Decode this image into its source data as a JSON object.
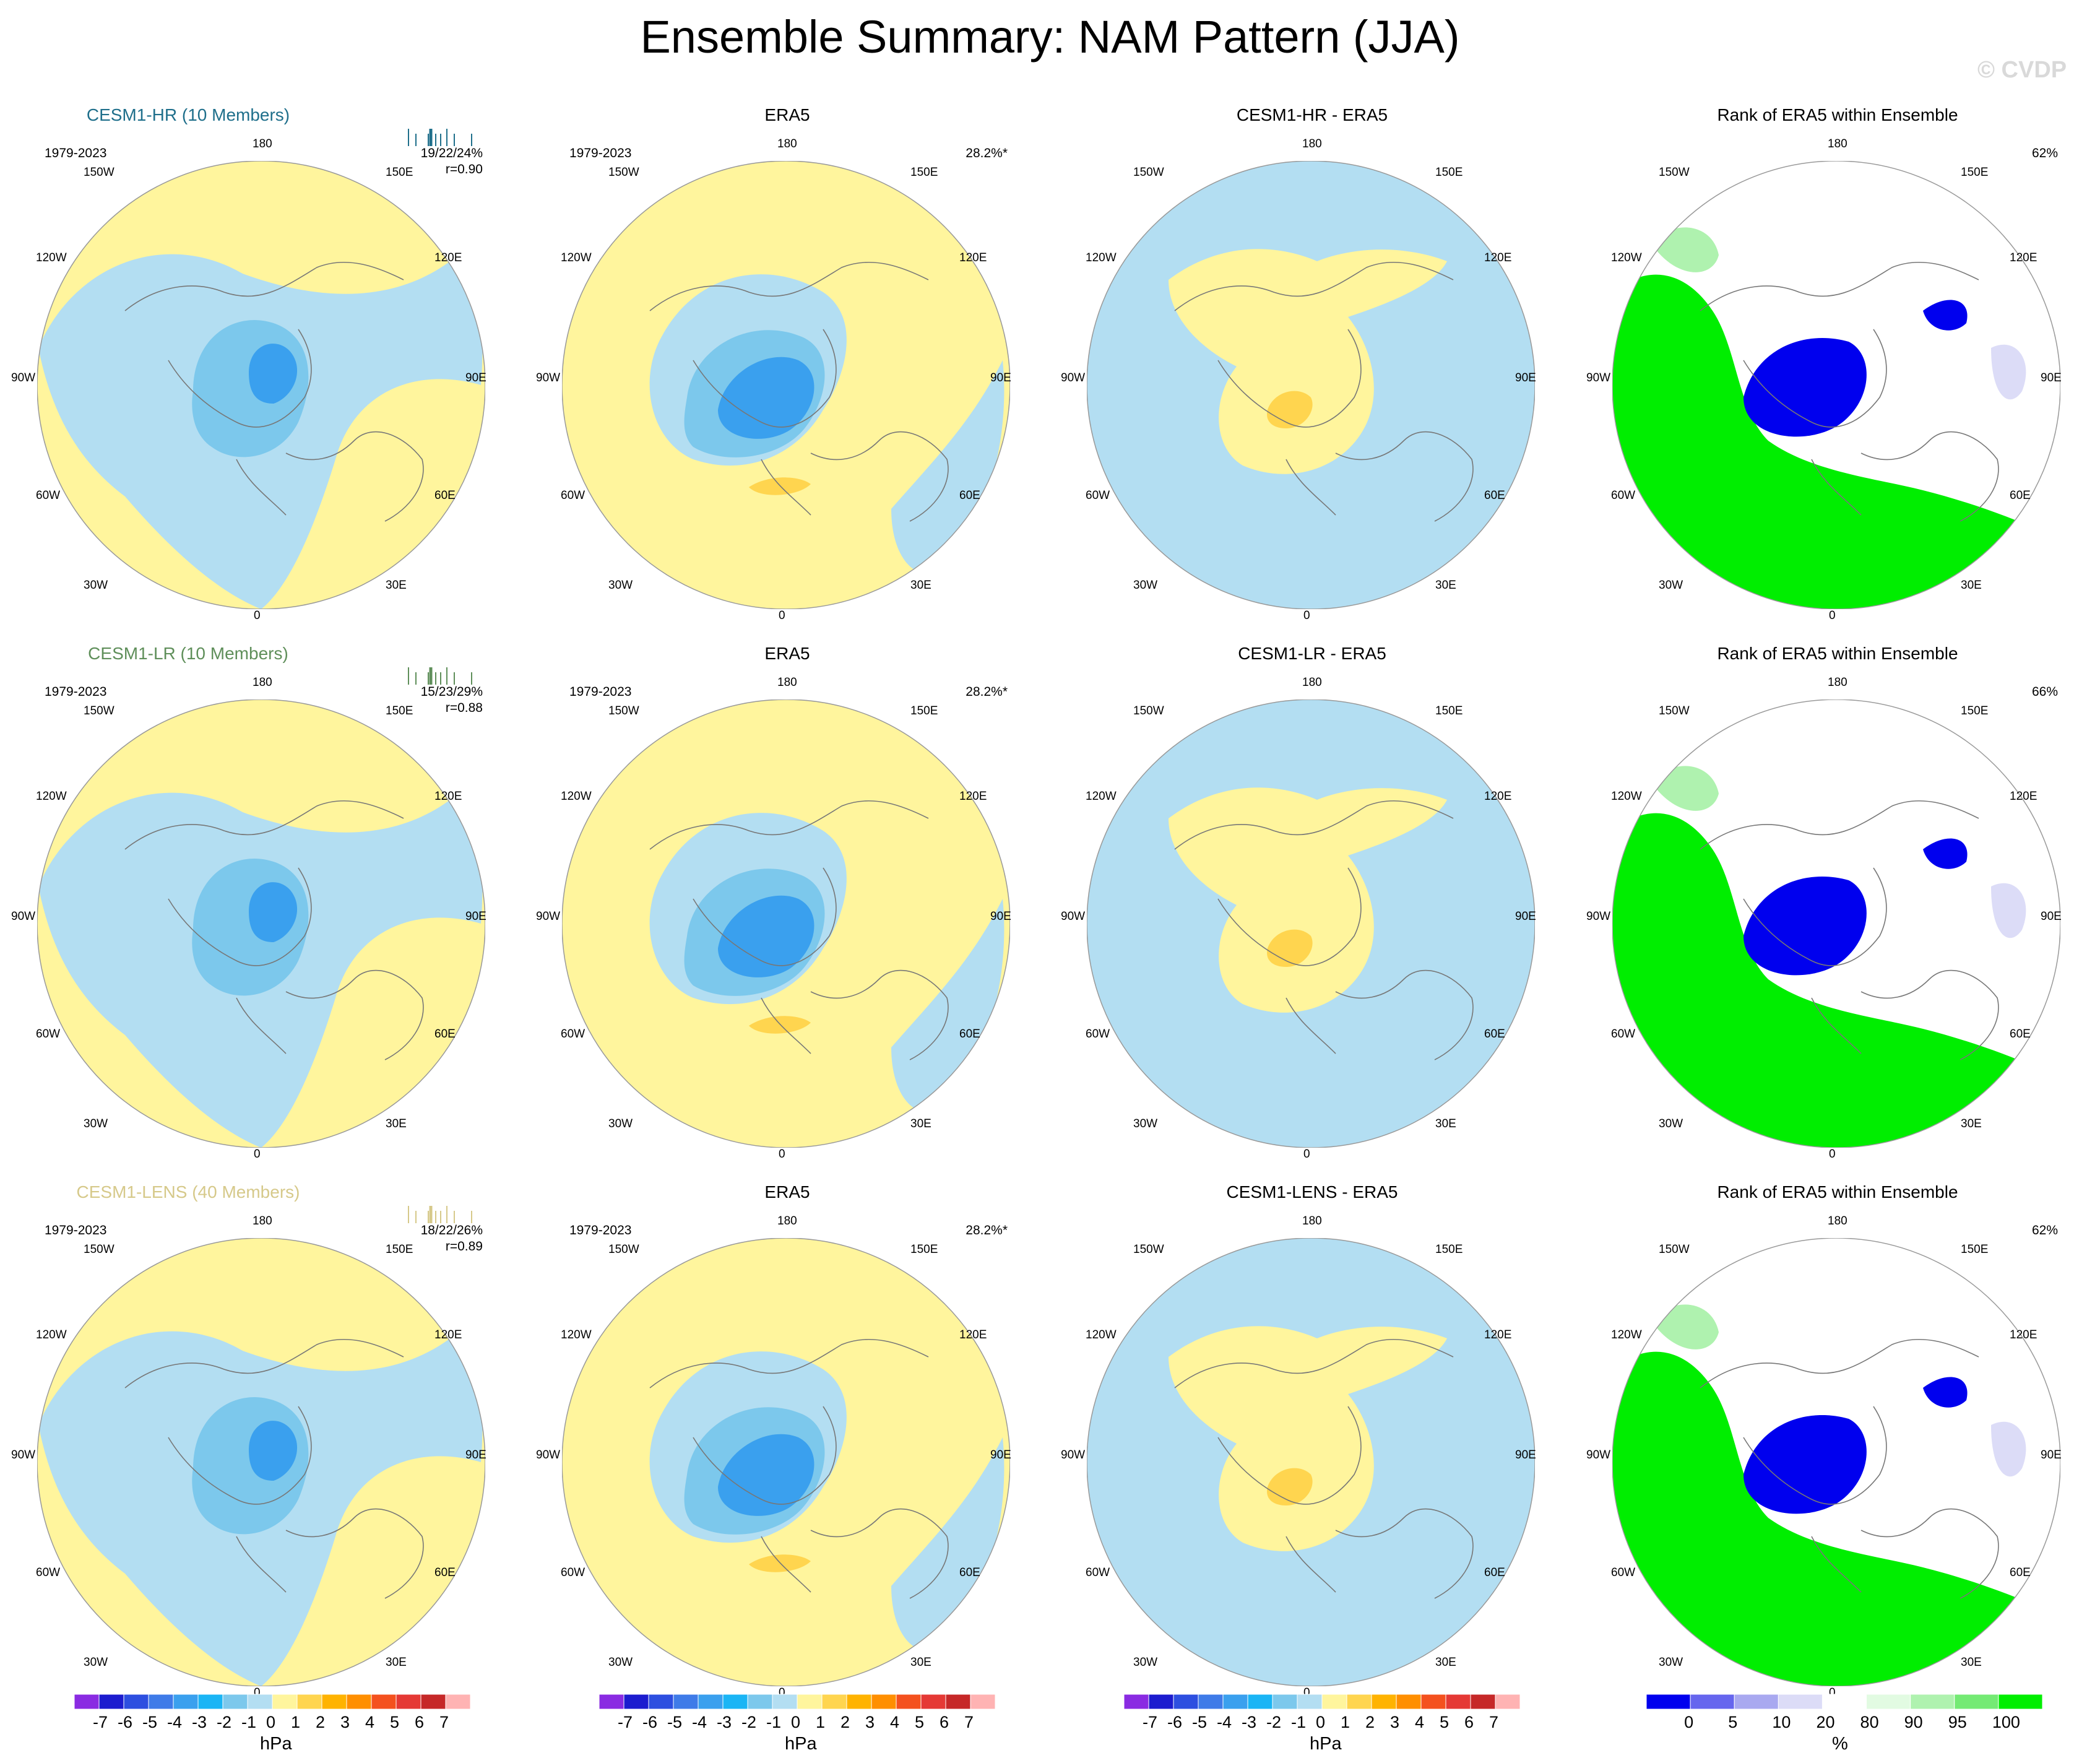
{
  "page": {
    "title": "Ensemble Summary: NAM Pattern (JJA)",
    "watermark": "© CVDP"
  },
  "lon_labels": {
    "top": "180",
    "bottom": "0",
    "l150": "150W",
    "r150": "150E",
    "l120": "120W",
    "r120": "120E",
    "l90": "90W",
    "r90": "90E",
    "l60": "60W",
    "r60": "60E",
    "l30": "30W",
    "r30": "30E"
  },
  "rows": [
    {
      "model": {
        "title": "CESM1-HR (10 Members)",
        "color": "#1f6f8b",
        "years": "1979-2023",
        "pct": "19/22/24%",
        "corr": "r=0.90"
      },
      "obs": {
        "title": "ERA5",
        "years": "1979-2023",
        "pct": "28.2%*"
      },
      "diff": {
        "title": "CESM1-HR - ERA5"
      },
      "rank": {
        "title": "Rank of ERA5 within Ensemble",
        "pct": "62%"
      }
    },
    {
      "model": {
        "title": "CESM1-LR (10 Members)",
        "color": "#5f8f5a",
        "years": "1979-2023",
        "pct": "15/23/29%",
        "corr": "r=0.88"
      },
      "obs": {
        "title": "ERA5",
        "years": "1979-2023",
        "pct": "28.2%*"
      },
      "diff": {
        "title": "CESM1-LR - ERA5"
      },
      "rank": {
        "title": "Rank of ERA5 within Ensemble",
        "pct": "66%"
      }
    },
    {
      "model": {
        "title": "CESM1-LENS (40 Members)",
        "color": "#d6c98a",
        "years": "1979-2023",
        "pct": "18/22/26%",
        "corr": "r=0.89"
      },
      "obs": {
        "title": "ERA5",
        "years": "1979-2023",
        "pct": "28.2%*"
      },
      "diff": {
        "title": "CESM1-LENS - ERA5"
      },
      "rank": {
        "title": "Rank of ERA5 within Ensemble",
        "pct": "62%"
      }
    }
  ],
  "colorbars": {
    "hpa": {
      "unit": "hPa",
      "labels": [
        "-7",
        "-6",
        "-5",
        "-4",
        "-3",
        "-2",
        "-1",
        "0",
        "1",
        "2",
        "3",
        "4",
        "5",
        "6",
        "7"
      ],
      "colors": [
        "#8a2be2",
        "#1c1ccf",
        "#2d4fe0",
        "#3f7be8",
        "#3aa0ee",
        "#1ab5f5",
        "#7cc8ec",
        "#b3def2",
        "#fff59d",
        "#ffd54f",
        "#ffb300",
        "#ff8f00",
        "#f4511e",
        "#e53935",
        "#c62828",
        "#ffb3b3"
      ]
    },
    "pct": {
      "unit": "%",
      "labels": [
        "0",
        "5",
        "10",
        "20",
        "80",
        "90",
        "95",
        "100"
      ],
      "colors": [
        "#0000ee",
        "#6666ee",
        "#a9a9f0",
        "#dcdcf7",
        "#ffffff",
        "#e2fbe2",
        "#aff2af",
        "#74ea74",
        "#00ee00"
      ]
    }
  },
  "chart_data": [
    {
      "type": "heatmap",
      "title": "CESM1-HR (10 Members)",
      "projection": "north polar stereographic",
      "units": "hPa",
      "stats": "19/22/24%",
      "correlation": 0.9
    },
    {
      "type": "heatmap",
      "title": "ERA5",
      "projection": "north polar stereographic",
      "units": "hPa",
      "stats": "28.2%*"
    },
    {
      "type": "heatmap",
      "title": "CESM1-HR - ERA5",
      "projection": "north polar stereographic",
      "units": "hPa"
    },
    {
      "type": "heatmap",
      "title": "Rank of ERA5 within Ensemble",
      "projection": "north polar stereographic",
      "units": "%",
      "stats": "62%"
    },
    {
      "type": "heatmap",
      "title": "CESM1-LR (10 Members)",
      "projection": "north polar stereographic",
      "units": "hPa",
      "stats": "15/23/29%",
      "correlation": 0.88
    },
    {
      "type": "heatmap",
      "title": "ERA5",
      "projection": "north polar stereographic",
      "units": "hPa",
      "stats": "28.2%*"
    },
    {
      "type": "heatmap",
      "title": "CESM1-LR - ERA5",
      "projection": "north polar stereographic",
      "units": "hPa"
    },
    {
      "type": "heatmap",
      "title": "Rank of ERA5 within Ensemble",
      "projection": "north polar stereographic",
      "units": "%",
      "stats": "66%"
    },
    {
      "type": "heatmap",
      "title": "CESM1-LENS (40 Members)",
      "projection": "north polar stereographic",
      "units": "hPa",
      "stats": "18/22/26%",
      "correlation": 0.89
    },
    {
      "type": "heatmap",
      "title": "ERA5",
      "projection": "north polar stereographic",
      "units": "hPa",
      "stats": "28.2%*"
    },
    {
      "type": "heatmap",
      "title": "CESM1-LENS - ERA5",
      "projection": "north polar stereographic",
      "units": "hPa"
    },
    {
      "type": "heatmap",
      "title": "Rank of ERA5 within Ensemble",
      "projection": "north polar stereographic",
      "units": "%",
      "stats": "62%"
    }
  ]
}
